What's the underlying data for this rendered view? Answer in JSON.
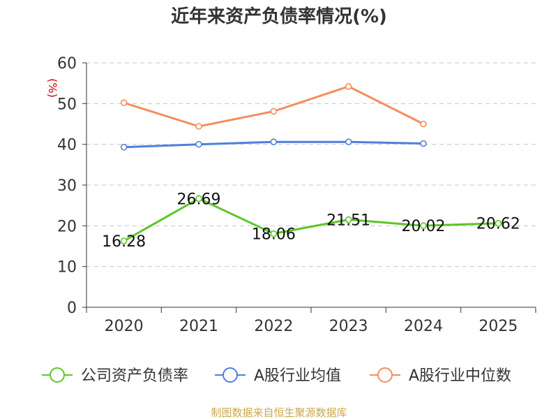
{
  "chart_data": {
    "type": "line",
    "title": "近年来资产负债率情况(%)",
    "ylabel": "(%)",
    "xlabel": "",
    "categories": [
      "2020",
      "2021",
      "2022",
      "2023",
      "2024",
      "2025"
    ],
    "ylim": [
      0,
      60
    ],
    "yticks": [
      0,
      10,
      20,
      30,
      40,
      50,
      60
    ],
    "grid": true,
    "legend_position": "bottom",
    "series": [
      {
        "name": "公司资产负债率",
        "color": "#5cc626",
        "values": [
          16.28,
          26.69,
          18.06,
          21.51,
          20.02,
          20.62
        ],
        "labels": [
          "16.28",
          "26.69",
          "18.06",
          "21.51",
          "20.02",
          "20.62"
        ],
        "show_labels": true
      },
      {
        "name": "A股行业均值",
        "color": "#4f7fdb",
        "values": [
          39.3,
          40.0,
          40.6,
          40.6,
          40.2,
          null
        ],
        "show_labels": false
      },
      {
        "name": "A股行业中位数",
        "color": "#f38e5c",
        "values": [
          50.2,
          44.4,
          48.1,
          54.2,
          45.0,
          null
        ],
        "show_labels": false
      }
    ],
    "source": "制图数据来自恒生聚源数据库"
  }
}
